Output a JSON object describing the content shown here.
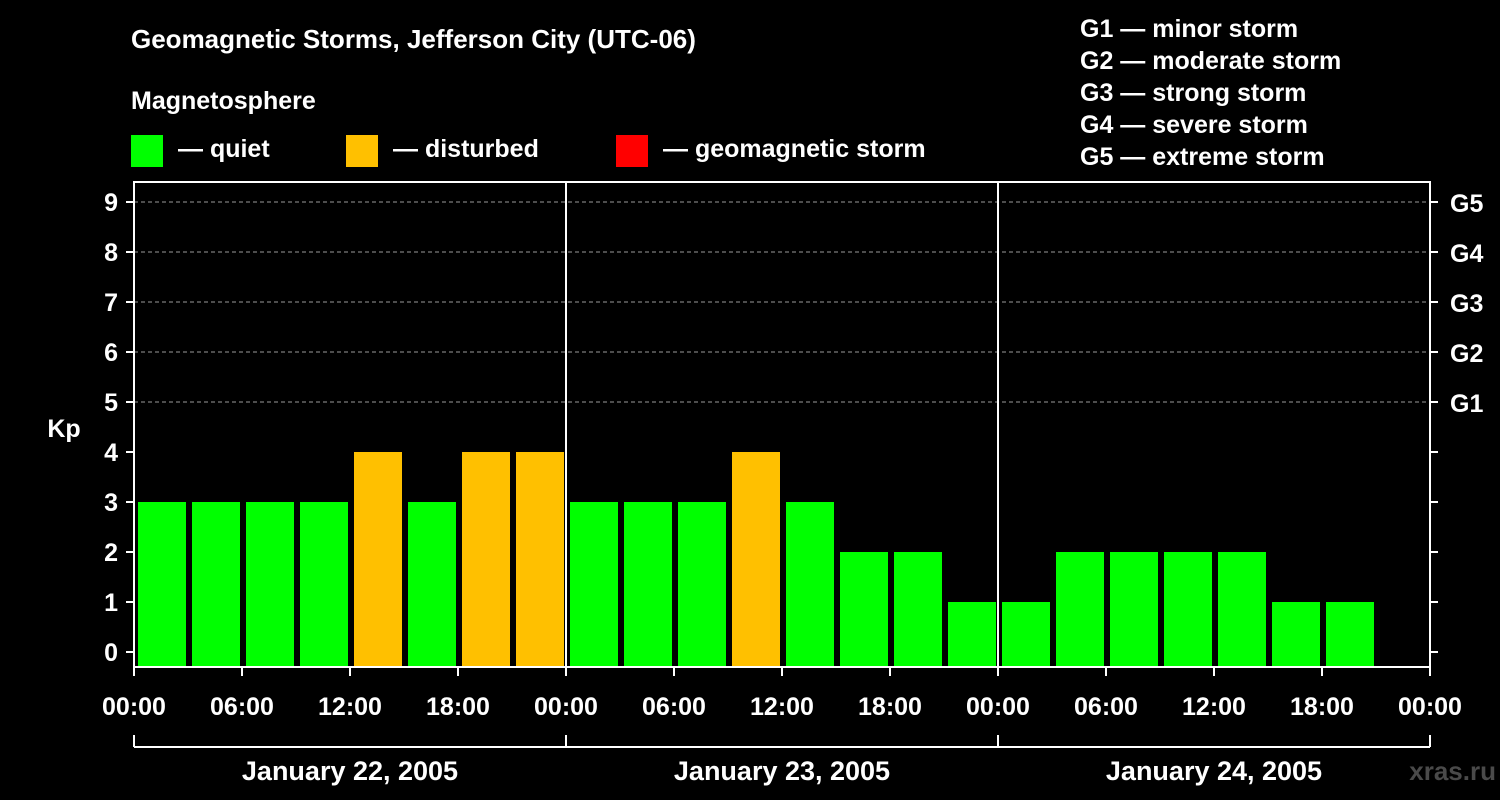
{
  "chart_data": {
    "type": "bar",
    "title": "Geomagnetic Storms, Jefferson City (UTC-06)",
    "subtitle": "Magnetosphere",
    "ylabel": "Kp",
    "ylim": [
      0,
      9
    ],
    "y_ticks": [
      "0",
      "1",
      "2",
      "3",
      "4",
      "5",
      "6",
      "7",
      "8",
      "9"
    ],
    "g_scale_ticks": [
      {
        "kp": 5,
        "label": "G1"
      },
      {
        "kp": 6,
        "label": "G2"
      },
      {
        "kp": 7,
        "label": "G3"
      },
      {
        "kp": 8,
        "label": "G4"
      },
      {
        "kp": 9,
        "label": "G5"
      }
    ],
    "x_ticks": [
      "00:00",
      "06:00",
      "12:00",
      "18:00",
      "00:00",
      "06:00",
      "12:00",
      "18:00",
      "00:00",
      "06:00",
      "12:00",
      "18:00",
      "00:00"
    ],
    "days": [
      "January 22, 2005",
      "January 23, 2005",
      "January 24, 2005"
    ],
    "grid": "dashed horizontal at Kp 5–9",
    "values": [
      3,
      3,
      3,
      3,
      4,
      3,
      4,
      4,
      3,
      3,
      3,
      4,
      3,
      2,
      2,
      1,
      1,
      2,
      2,
      2,
      2,
      1,
      1
    ],
    "status_legend": [
      {
        "label": "— quiet",
        "color": "#00ff00"
      },
      {
        "label": "— disturbed",
        "color": "#ffc000"
      },
      {
        "label": "— geomagnetic storm",
        "color": "#ff0000"
      }
    ],
    "storm_scale_legend": [
      "G1 — minor storm",
      "G2 — moderate storm",
      "G3 — strong storm",
      "G4 — severe storm",
      "G5 — extreme storm"
    ],
    "colors": {
      "quiet": "#00ff00",
      "disturbed": "#ffc000",
      "storm": "#ff0000",
      "background": "#000000",
      "axis": "#ffffff"
    }
  },
  "watermark": "xras.ru"
}
